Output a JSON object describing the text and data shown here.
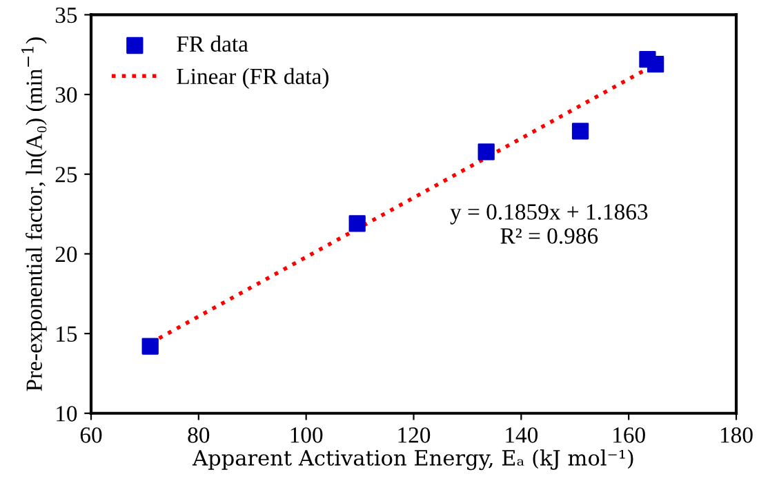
{
  "chart_data": {
    "type": "scatter",
    "xlabel": "Apparent Activation Energy, Eₐ (kJ mol⁻¹)",
    "ylabel": "Pre-exponential factor, ln(A₀) (min$^{−1}$)",
    "series": [
      {
        "name": "FR data",
        "color": "#0000cc",
        "marker": "square",
        "x": [
          71,
          109.5,
          133.5,
          151,
          163.5,
          165
        ],
        "values": [
          14.2,
          21.9,
          26.4,
          27.7,
          32.2,
          31.9
        ]
      },
      {
        "name": "Linear (FR data)",
        "type": "line",
        "color": "#ff0000",
        "line_style": "dotted",
        "marker": "none",
        "x": [
          71,
          165
        ],
        "values": [
          14.4,
          31.9
        ]
      }
    ],
    "annotations": [
      "y = 0.1859x + 1.1863\nR² = 0.986"
    ],
    "xlim": [
      60,
      180
    ],
    "xticks": [
      60,
      80,
      100,
      120,
      140,
      160,
      180
    ],
    "ylim": [
      10,
      35
    ],
    "yticks": [
      10,
      15,
      20,
      25,
      30,
      35
    ],
    "grid": false,
    "legend": "top left"
  }
}
